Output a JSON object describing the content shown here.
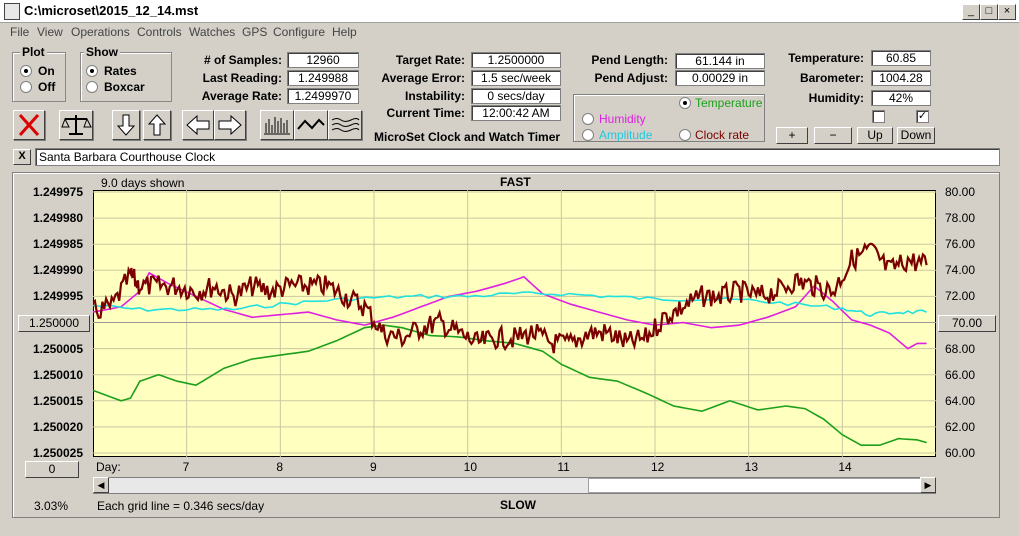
{
  "window": {
    "title": "C:\\microset\\2015_12_14.mst"
  },
  "menu": [
    "File",
    "View",
    "Operations",
    "Controls",
    "Watches",
    "GPS",
    "Configure",
    "Help"
  ],
  "plot_group": {
    "label": "Plot",
    "options": [
      "On",
      "Off"
    ],
    "selected": "On"
  },
  "show_group": {
    "label": "Show",
    "options": [
      "Rates",
      "Boxcar"
    ],
    "selected": "Rates"
  },
  "stats": {
    "samples_label": "# of Samples:",
    "samples": "12960",
    "last_label": "Last Reading:",
    "last": "1.249988",
    "avg_label": "Average Rate:",
    "avg": "1.2499970",
    "target_label": "Target Rate:",
    "target": "1.2500000",
    "avgerr_label": "Average Error:",
    "avgerr": "1.5 sec/week",
    "instab_label": "Instability:",
    "instab": "0 secs/day",
    "time_label": "Current Time:",
    "time": "12:00:42 AM",
    "pendlen_label": "Pend Length:",
    "pendlen": "61.144 in",
    "pendadj_label": "Pend Adjust:",
    "pendadj": "0.00029 in",
    "temp_label": "Temperature:",
    "temp": "60.85",
    "baro_label": "Barometer:",
    "baro": "1004.28",
    "hum_label": "Humidity:",
    "hum": "42%"
  },
  "app_name": "MicroSet Clock and Watch Timer",
  "sensor_select": {
    "options": [
      "Temperature",
      "Humidity",
      "Amplitude",
      "Clock rate"
    ],
    "selected": "Temperature"
  },
  "scale_buttons": [
    "+",
    "−",
    "Up",
    "Down"
  ],
  "watch_name": "Santa Barbara Courthouse Clock",
  "close_x": "X",
  "chart_header": {
    "days_shown": "9.0 days shown",
    "top": "FAST",
    "bottom": "SLOW"
  },
  "footer": {
    "pct": "3.03%",
    "grid_note": "Each grid line = 0.346 secs/day",
    "zero_btn": "0",
    "center_btn": "1.250000",
    "right_center_btn": "70.00",
    "day_label": "Day:"
  },
  "colors": {
    "rate": "#7a0000",
    "temperature": "#1ca01c",
    "humidity": "#e020e0",
    "amplitude": "#20e0e0",
    "plot_bg": "#ffffc0"
  },
  "chart_data": {
    "type": "line",
    "x_label": "Day",
    "x_ticks": [
      "7",
      "8",
      "9",
      "10",
      "11",
      "12",
      "13",
      "14"
    ],
    "left_axis": {
      "ticks": [
        "1.249975",
        "1.249980",
        "1.249985",
        "1.249990",
        "1.249995",
        "1.250000",
        "1.250005",
        "1.250010",
        "1.250015",
        "1.250020",
        "1.250025"
      ],
      "range": [
        1.249975,
        1.250025
      ],
      "inverted": true
    },
    "right_axis": {
      "ticks": [
        "80.00",
        "78.00",
        "76.00",
        "74.00",
        "72.00",
        "70.00",
        "68.00",
        "66.00",
        "64.00",
        "62.00",
        "60.00"
      ],
      "range": [
        60,
        80
      ]
    },
    "x_range": [
      6,
      15
    ],
    "series": [
      {
        "name": "Temperature",
        "axis": "right",
        "color": "#1ca01c",
        "x": [
          6.0,
          6.3,
          6.4,
          6.5,
          6.7,
          6.9,
          7.1,
          7.4,
          7.7,
          8.0,
          8.3,
          8.6,
          8.9,
          9.1,
          9.3,
          9.6,
          9.9,
          10.2,
          10.5,
          10.8,
          11.0,
          11.3,
          11.6,
          11.9,
          12.2,
          12.5,
          12.8,
          13.1,
          13.4,
          13.6,
          13.8,
          14.0,
          14.2,
          14.4,
          14.6,
          14.8,
          14.9
        ],
        "y": [
          64.8,
          64.0,
          64.2,
          65.5,
          66.0,
          65.5,
          65.2,
          66.5,
          67.2,
          67.5,
          67.8,
          68.6,
          69.6,
          69.8,
          69.6,
          69.0,
          68.9,
          68.6,
          68.4,
          67.8,
          66.8,
          65.8,
          65.5,
          64.6,
          63.6,
          63.2,
          64.0,
          63.3,
          63.6,
          63.4,
          62.6,
          61.4,
          60.6,
          60.6,
          61.1,
          61.0,
          60.8
        ]
      },
      {
        "name": "Humidity",
        "axis": "right",
        "color": "#e020e0",
        "x": [
          6.0,
          6.3,
          6.5,
          6.6,
          6.8,
          7.1,
          7.4,
          7.7,
          8.0,
          8.3,
          8.6,
          8.9,
          9.2,
          9.5,
          9.8,
          10.1,
          10.4,
          10.6,
          10.8,
          11.1,
          11.4,
          11.7,
          12.0,
          12.3,
          12.6,
          12.9,
          13.2,
          13.5,
          13.7,
          13.9,
          14.1,
          14.3,
          14.5,
          14.7,
          14.8,
          14.9
        ],
        "y": [
          70.8,
          71.2,
          72.4,
          73.8,
          73.0,
          72.0,
          71.0,
          70.4,
          70.6,
          70.8,
          70.2,
          69.8,
          70.4,
          71.2,
          72.0,
          72.4,
          73.0,
          73.5,
          72.2,
          71.4,
          70.8,
          70.2,
          69.8,
          70.0,
          69.6,
          69.8,
          70.4,
          71.2,
          72.8,
          71.6,
          70.2,
          69.8,
          69.2,
          68.0,
          68.4,
          68.4
        ]
      },
      {
        "name": "Amplitude",
        "axis": "right",
        "color": "#20e0e0",
        "x": [
          6.0,
          6.5,
          7.0,
          7.5,
          8.0,
          8.5,
          9.0,
          9.5,
          10.0,
          10.5,
          11.0,
          11.5,
          12.0,
          12.5,
          13.0,
          13.5,
          14.0,
          14.3,
          14.6,
          14.9
        ],
        "y": [
          71.3,
          71.0,
          71.0,
          71.0,
          71.4,
          71.7,
          71.9,
          72.0,
          72.0,
          72.2,
          72.2,
          72.0,
          71.8,
          71.8,
          71.7,
          71.4,
          71.1,
          70.6,
          70.8,
          70.8
        ],
        "style": "noisy"
      },
      {
        "name": "Clock rate",
        "axis": "left",
        "color": "#7a0000",
        "x": [
          6.0,
          6.2,
          6.4,
          6.5,
          6.7,
          6.9,
          7.1,
          7.3,
          7.5,
          7.7,
          7.9,
          8.1,
          8.3,
          8.5,
          8.7,
          8.9,
          9.1,
          9.3,
          9.5,
          9.7,
          9.9,
          10.1,
          10.3,
          10.5,
          10.7,
          10.9,
          11.1,
          11.3,
          11.5,
          11.7,
          11.9,
          12.1,
          12.3,
          12.5,
          12.7,
          12.9,
          13.1,
          13.3,
          13.5,
          13.7,
          13.9,
          14.1,
          14.3,
          14.5,
          14.7,
          14.9
        ],
        "y": [
          1.249998,
          1.249997,
          1.249991,
          1.249993,
          1.249993,
          1.249993,
          1.249994,
          1.249993,
          1.249995,
          1.249993,
          1.249994,
          1.249993,
          1.249993,
          1.249993,
          1.249995,
          1.249997,
          1.250002,
          1.250003,
          1.250001,
          1.25,
          1.250002,
          1.250004,
          1.250003,
          1.250003,
          1.250002,
          1.250004,
          1.250004,
          1.250002,
          1.250002,
          1.250004,
          1.250003,
          1.249999,
          1.249997,
          1.249995,
          1.249995,
          1.249994,
          1.249995,
          1.249994,
          1.249992,
          1.249993,
          1.249994,
          1.249988,
          1.249986,
          1.24999,
          1.249988,
          1.249989
        ],
        "style": "noisy"
      }
    ]
  }
}
